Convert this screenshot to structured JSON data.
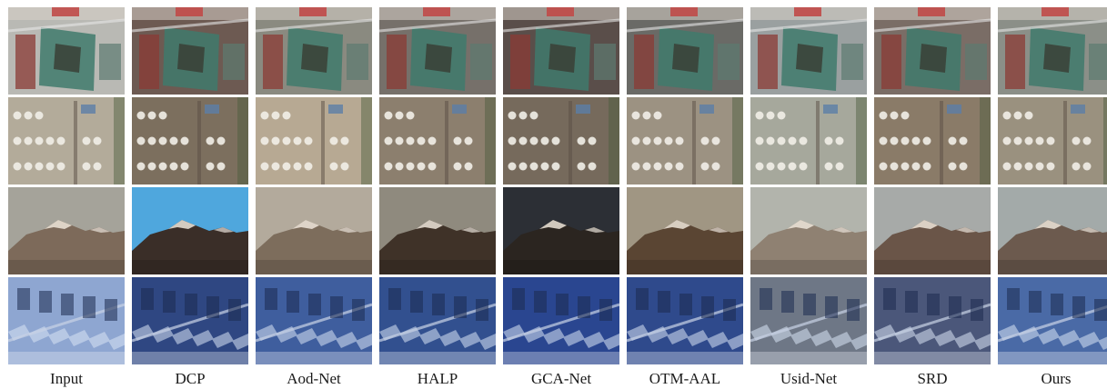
{
  "figure": {
    "columns": [
      {
        "label": "Input"
      },
      {
        "label": "DCP"
      },
      {
        "label": "Aod-Net"
      },
      {
        "label": "HALP"
      },
      {
        "label": "GCA-Net"
      },
      {
        "label": "OTM-AAL"
      },
      {
        "label": "Usid-Net"
      },
      {
        "label": "SRD"
      },
      {
        "label": "Ours"
      }
    ],
    "rows": [
      {
        "scene": "aerial-palace-building"
      },
      {
        "scene": "aerial-oil-storage-tanks"
      },
      {
        "scene": "snowy-mountain-range"
      },
      {
        "scene": "aerial-industrial-roofs"
      }
    ],
    "tints": {
      "palace": [
        "#b9b9b4",
        "#6d5a52",
        "#8a8a80",
        "#76706a",
        "#5a4e4a",
        "#6a6a66",
        "#9aa0a0",
        "#7a6d66",
        "#8b8f88"
      ],
      "tanks": [
        "#b3ab9a",
        "#7c6f5e",
        "#b7a993",
        "#8c7f6e",
        "#766a5c",
        "#9c9282",
        "#a6a89c",
        "#8a7b68",
        "#9a917f"
      ],
      "sky": [
        "#a5a39a",
        "#4fa7dd",
        "#b3aa9c",
        "#8f8a7e",
        "#2c2f35",
        "#a09683",
        "#b2b4ac",
        "#a7aaa8",
        "#a3aaa9"
      ],
      "ground": [
        "#7d6a5a",
        "#3a2e28",
        "#7d6d5c",
        "#3f3228",
        "#2b2520",
        "#5a4533",
        "#8f8172",
        "#6a5548",
        "#6c5a4e"
      ],
      "industry": [
        "#8ea6d1",
        "#2f4782",
        "#3f5e9e",
        "#32508f",
        "#2a4690",
        "#2f4a8c",
        "#6e7786",
        "#4b577a",
        "#4a6aa6"
      ]
    }
  }
}
